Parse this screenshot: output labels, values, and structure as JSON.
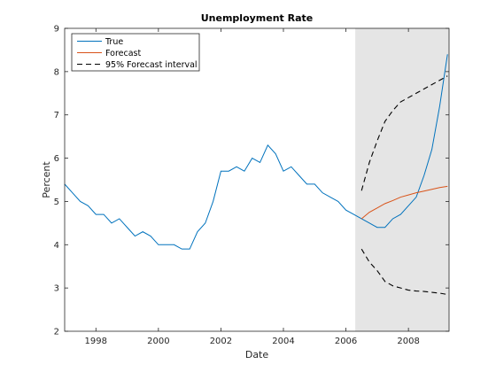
{
  "chart_data": {
    "type": "line",
    "title": "Unemployment Rate",
    "xlabel": "Date",
    "ylabel": "Percent",
    "xlim": [
      1997.0,
      2009.3
    ],
    "ylim": [
      2,
      9
    ],
    "x_ticks": [
      1998,
      2000,
      2002,
      2004,
      2006,
      2008
    ],
    "x_tick_labels": [
      "1998",
      "2000",
      "2002",
      "2004",
      "2006",
      "2008"
    ],
    "y_ticks": [
      2,
      3,
      4,
      5,
      6,
      7,
      8,
      9
    ],
    "y_tick_labels": [
      "2",
      "3",
      "4",
      "5",
      "6",
      "7",
      "8",
      "9"
    ],
    "grid": false,
    "legend_position": "top-left",
    "shaded_region": {
      "x_start": 2006.3,
      "x_end": 2009.3,
      "color": "#e5e5e5"
    },
    "series": [
      {
        "name": "True",
        "color": "#0072bd",
        "style": "solid",
        "x": [
          1997.0,
          1997.25,
          1997.5,
          1997.75,
          1998.0,
          1998.25,
          1998.5,
          1998.75,
          1999.0,
          1999.25,
          1999.5,
          1999.75,
          2000.0,
          2000.25,
          2000.5,
          2000.75,
          2001.0,
          2001.25,
          2001.5,
          2001.75,
          2002.0,
          2002.25,
          2002.5,
          2002.75,
          2003.0,
          2003.25,
          2003.5,
          2003.75,
          2004.0,
          2004.25,
          2004.5,
          2004.75,
          2005.0,
          2005.25,
          2005.5,
          2005.75,
          2006.0,
          2006.25,
          2006.5,
          2006.75,
          2007.0,
          2007.25,
          2007.5,
          2007.75,
          2008.0,
          2008.25,
          2008.5,
          2008.75,
          2009.0,
          2009.25
        ],
        "values": [
          5.4,
          5.2,
          5.0,
          4.9,
          4.7,
          4.7,
          4.5,
          4.6,
          4.4,
          4.2,
          4.3,
          4.2,
          4.0,
          4.0,
          4.0,
          3.9,
          3.9,
          4.3,
          4.5,
          5.0,
          5.7,
          5.7,
          5.8,
          5.7,
          6.0,
          5.9,
          6.3,
          6.1,
          5.7,
          5.8,
          5.6,
          5.4,
          5.4,
          5.2,
          5.1,
          5.0,
          4.8,
          4.7,
          4.6,
          4.5,
          4.4,
          4.4,
          4.6,
          4.7,
          4.9,
          5.1,
          5.6,
          6.2,
          7.2,
          8.4
        ]
      },
      {
        "name": "Forecast",
        "color": "#d95319",
        "style": "solid",
        "x": [
          2006.5,
          2006.75,
          2007.0,
          2007.25,
          2007.5,
          2007.75,
          2008.0,
          2008.25,
          2008.5,
          2008.75,
          2009.0,
          2009.25
        ],
        "values": [
          4.6,
          4.75,
          4.85,
          4.95,
          5.02,
          5.1,
          5.15,
          5.2,
          5.24,
          5.28,
          5.32,
          5.35
        ]
      },
      {
        "name": "95% Forecast interval",
        "color": "#000000",
        "style": "dashed",
        "x": [
          2006.5,
          2006.75,
          2007.0,
          2007.25,
          2007.5,
          2007.75,
          2008.0,
          2008.25,
          2008.5,
          2008.75,
          2009.0,
          2009.25
        ],
        "values": [
          5.25,
          5.9,
          6.4,
          6.85,
          7.1,
          7.3,
          7.4,
          7.5,
          7.6,
          7.7,
          7.8,
          7.9
        ]
      },
      {
        "name": "",
        "color": "#000000",
        "style": "dashed",
        "x": [
          2006.5,
          2006.75,
          2007.0,
          2007.25,
          2007.5,
          2007.75,
          2008.0,
          2008.25,
          2008.5,
          2008.75,
          2009.0,
          2009.25
        ],
        "values": [
          3.9,
          3.6,
          3.4,
          3.15,
          3.05,
          3.0,
          2.95,
          2.93,
          2.92,
          2.9,
          2.88,
          2.85
        ]
      }
    ],
    "legend": [
      {
        "label": "True",
        "color": "#0072bd",
        "style": "solid"
      },
      {
        "label": "Forecast",
        "color": "#d95319",
        "style": "solid"
      },
      {
        "label": "95% Forecast interval",
        "color": "#000000",
        "style": "dashed"
      }
    ]
  }
}
